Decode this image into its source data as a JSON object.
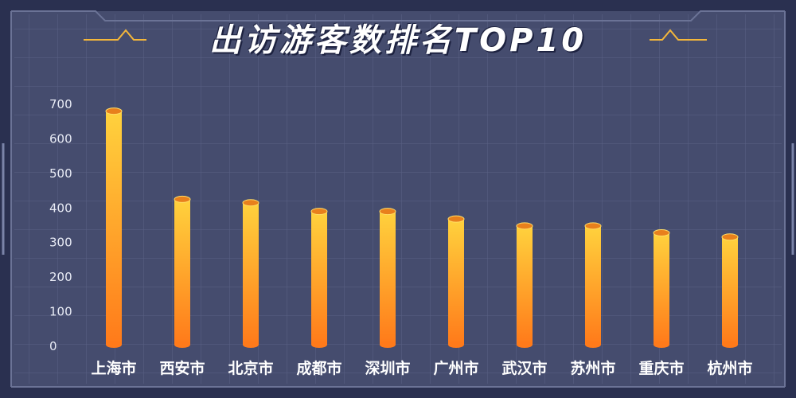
{
  "title": "出访游客数排名TOP10",
  "colors": {
    "background": "#454c6e",
    "grid": "#5a6285",
    "frame": "#2a3050",
    "bar_top": "#ffd23d",
    "bar_bottom": "#ff7a1a",
    "accent_line": "#f4b73a"
  },
  "chart_data": {
    "type": "bar",
    "categories": [
      "上海市",
      "西安市",
      "北京市",
      "成都市",
      "深圳市",
      "广州市",
      "武汉市",
      "苏州市",
      "重庆市",
      "杭州市"
    ],
    "values": [
      680,
      425,
      415,
      390,
      390,
      368,
      348,
      348,
      328,
      316
    ],
    "yticks": [
      0,
      100,
      200,
      300,
      400,
      500,
      600,
      700
    ],
    "ylim": [
      0,
      700
    ],
    "grid": true,
    "legend": "none"
  }
}
